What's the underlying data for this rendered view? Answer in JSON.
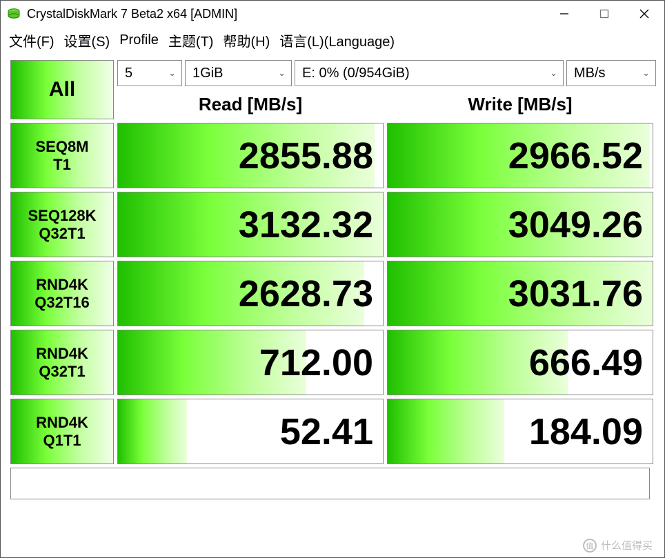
{
  "window": {
    "title": "CrystalDiskMark 7 Beta2 x64 [ADMIN]"
  },
  "menu": {
    "file": "文件(F)",
    "settings": "设置(S)",
    "profile": "Profile",
    "theme": "主题(T)",
    "help": "帮助(H)",
    "language": "语言(L)(Language)"
  },
  "controls": {
    "all_label": "All",
    "runs": "5",
    "size": "1GiB",
    "drive": "E: 0% (0/954GiB)",
    "unit": "MB/s"
  },
  "headers": {
    "read": "Read [MB/s]",
    "write": "Write [MB/s]"
  },
  "rows": [
    {
      "label_line1": "SEQ8M",
      "label_line2": "T1",
      "read": "2855.88",
      "write": "2966.52",
      "read_pct": 97,
      "write_pct": 99
    },
    {
      "label_line1": "SEQ128K",
      "label_line2": "Q32T1",
      "read": "3132.32",
      "write": "3049.26",
      "read_pct": 100,
      "write_pct": 100
    },
    {
      "label_line1": "RND4K",
      "label_line2": "Q32T16",
      "read": "2628.73",
      "write": "3031.76",
      "read_pct": 93,
      "write_pct": 100
    },
    {
      "label_line1": "RND4K",
      "label_line2": "Q32T1",
      "read": "712.00",
      "write": "666.49",
      "read_pct": 71,
      "write_pct": 68
    },
    {
      "label_line1": "RND4K",
      "label_line2": "Q1T1",
      "read": "52.41",
      "write": "184.09",
      "read_pct": 26,
      "write_pct": 44
    }
  ],
  "status": "",
  "watermark": "什么值得买",
  "colors": {
    "gradient_start": "#1fbf00",
    "gradient_mid": "#7aff3a",
    "gradient_end": "#f0ffe8",
    "border": "#888888",
    "text": "#000000",
    "background": "#ffffff"
  }
}
